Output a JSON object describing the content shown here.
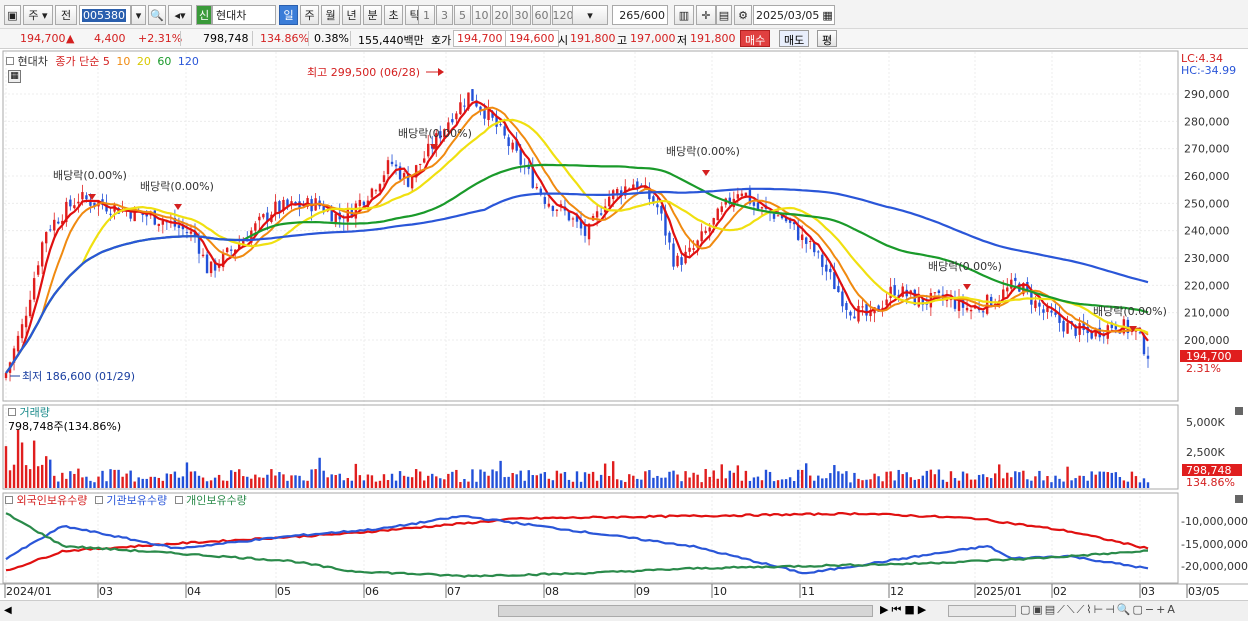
{
  "toolbar": {
    "period_label": "주",
    "prev_label": "전",
    "code": "005380",
    "stock_name": "현대차",
    "credit_badge": "신",
    "tabs": [
      "일",
      "주",
      "월",
      "년",
      "분",
      "초",
      "틱"
    ],
    "intervals": [
      "1",
      "3",
      "5",
      "10",
      "20",
      "30",
      "60",
      "120"
    ],
    "count": "265",
    "count_total": "/600",
    "date": "2025/03/05"
  },
  "infobar": {
    "price": "194,700",
    "change": "4,400",
    "change_pct": "+2.31%",
    "volume": "798,748",
    "vol_ratio": "134.86%",
    "turnover": "0.38%",
    "amount": "155,440백만",
    "hoga_label": "호가",
    "hoga_ask": "194,700",
    "hoga_bid": "194,600",
    "open_label": "시",
    "open": "191,800",
    "high_label": "고",
    "high": "197,000",
    "low_label": "저",
    "low": "191,800",
    "buy_label": "매수",
    "sell_label": "매도",
    "eval_label": "평"
  },
  "main_legend": {
    "name": "현대차",
    "close_label": "종가 단순",
    "ma_labels": [
      "5",
      "10",
      "20",
      "60",
      "120"
    ]
  },
  "annotations": {
    "high_marker": "최고 299,500 (06/28)",
    "low_marker": "최저 186,600 (01/29)",
    "dividend": "배당락(0.00%)",
    "lc": "LC:4.34",
    "hc": "HC:-34.99",
    "current_price": "194,700",
    "current_pct": "2.31%"
  },
  "volume_panel": {
    "title": "거래량",
    "readout": "798,748주(134.86%)",
    "current": "798,748",
    "current_pct": "134.86%",
    "axis_labels": [
      "5,000K",
      "2,500K"
    ]
  },
  "holdings_panel": {
    "labels": [
      "외국인보유수량",
      "기관보유수량",
      "개인보유수량"
    ],
    "axis_labels": [
      "-10,000,000",
      "-15,000,000",
      "-20,000,000"
    ]
  },
  "price_axis": [
    "290,000",
    "280,000",
    "270,000",
    "260,000",
    "250,000",
    "240,000",
    "230,000",
    "220,000",
    "210,000",
    "200,000"
  ],
  "time_axis": [
    "2024/01",
    "03",
    "04",
    "05",
    "06",
    "07",
    "08",
    "09",
    "10",
    "11",
    "12",
    "2025/01",
    "02",
    "03",
    "03/05"
  ],
  "colors": {
    "up": "#e01e1e",
    "down": "#2250d8",
    "ma5": "#e01010",
    "ma10": "#f08a10",
    "ma20": "#f0e010",
    "ma60": "#1a9a2a",
    "ma120": "#2a56d8",
    "foreign": "#e01010",
    "institution": "#2a56d8",
    "individual": "#2a8a4a"
  }
}
